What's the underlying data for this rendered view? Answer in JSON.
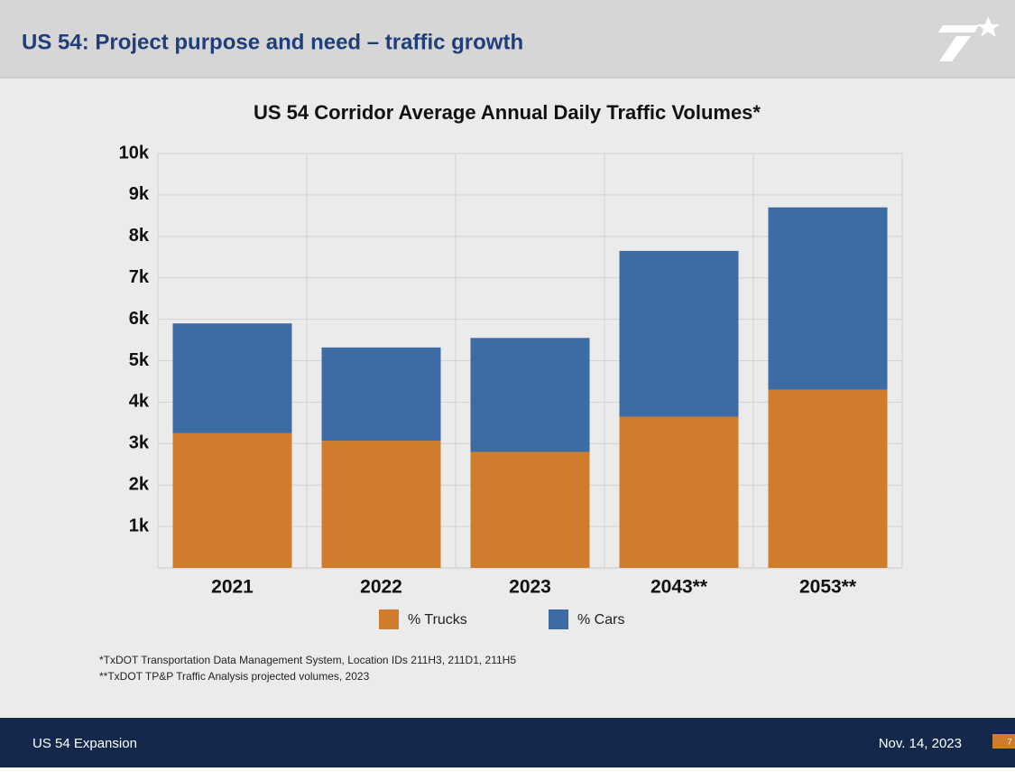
{
  "slide": {
    "heading": "US 54: Project purpose and need – traffic growth",
    "footnotes": [
      "*TxDOT Transportation Data Management System, Location IDs 211H3, 211D1, 211H5",
      "**TxDOT TP&P Traffic Analysis projected volumes, 2023"
    ],
    "footer_left": "US 54 Expansion",
    "footer_date": "Nov. 14, 2023",
    "page_number": "7"
  },
  "chart_data": {
    "type": "stacked_bar",
    "title": "US 54 Corridor Average Annual Daily Traffic Volumes*",
    "categories": [
      "2021",
      "2022",
      "2023",
      "2043**",
      "2053**"
    ],
    "series": [
      {
        "name": "% Trucks",
        "color": "#cf7d2d",
        "values": [
          3250,
          3070,
          2800,
          3650,
          4300
        ]
      },
      {
        "name": "% Cars",
        "color": "#3d6ba4",
        "values": [
          2650,
          2250,
          2750,
          4000,
          4400
        ]
      }
    ],
    "ylim": [
      0,
      10000
    ],
    "yticks": [
      {
        "value": 1000,
        "label": "1k"
      },
      {
        "value": 2000,
        "label": "2k"
      },
      {
        "value": 3000,
        "label": "3k"
      },
      {
        "value": 4000,
        "label": "4k"
      },
      {
        "value": 5000,
        "label": "5k"
      },
      {
        "value": 6000,
        "label": "6k"
      },
      {
        "value": 7000,
        "label": "7k"
      },
      {
        "value": 8000,
        "label": "8k"
      },
      {
        "value": 9000,
        "label": "9k"
      },
      {
        "value": 10000,
        "label": "10k"
      }
    ],
    "grid": true,
    "legend": "bottom"
  }
}
